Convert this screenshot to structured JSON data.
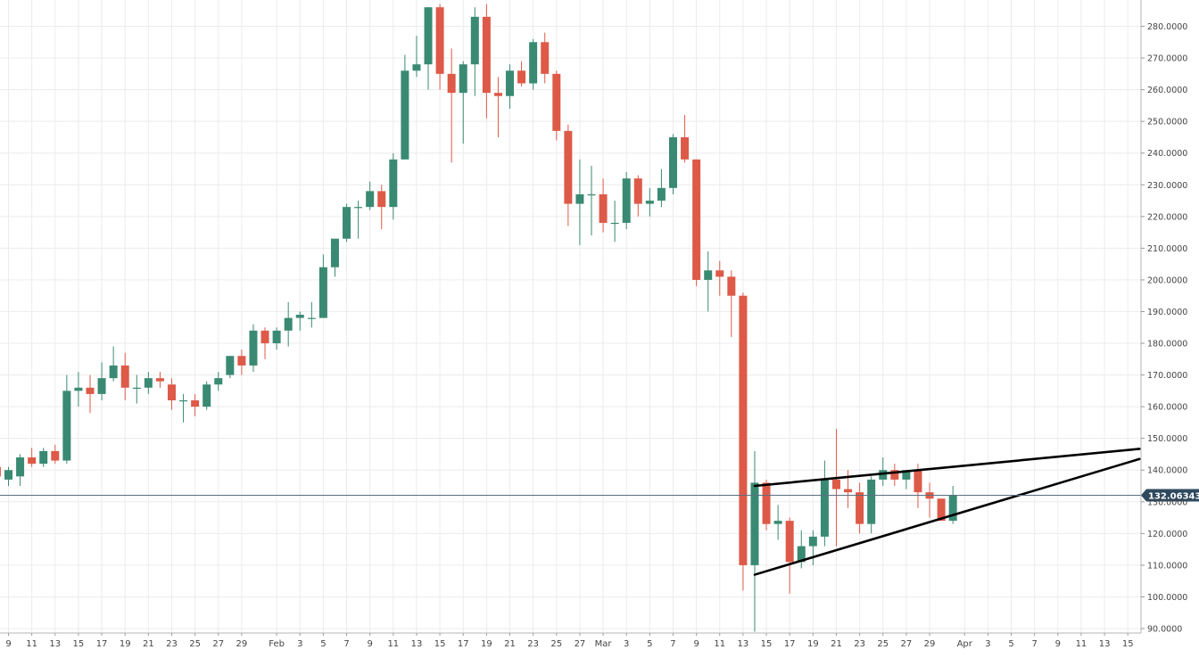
{
  "chart_data": {
    "type": "candlestick",
    "x_ticks": [
      "9",
      "11",
      "13",
      "15",
      "17",
      "19",
      "21",
      "23",
      "25",
      "27",
      "29",
      "Feb",
      "3",
      "5",
      "7",
      "9",
      "11",
      "13",
      "15",
      "17",
      "19",
      "21",
      "23",
      "25",
      "27",
      "Mar",
      "3",
      "5",
      "7",
      "9",
      "11",
      "13",
      "15",
      "17",
      "19",
      "21",
      "23",
      "25",
      "27",
      "29",
      "Apr",
      "3",
      "5",
      "7",
      "9",
      "11",
      "13",
      "15"
    ],
    "y_ticks": [
      "90.0000",
      "100.0000",
      "110.0000",
      "120.0000",
      "130.0000",
      "140.0000",
      "150.0000",
      "160.0000",
      "170.0000",
      "180.0000",
      "190.0000",
      "200.0000",
      "210.0000",
      "220.0000",
      "230.0000",
      "240.0000",
      "250.0000",
      "260.0000",
      "270.0000",
      "280.0000"
    ],
    "ylim": [
      89,
      287
    ],
    "grid": true,
    "current_price": "132.06343",
    "current_price_value": 132.06,
    "colors": {
      "up": "#3a8a73",
      "down": "#dd5a48",
      "trendline": "#000000",
      "price_line": "#5a6f80",
      "price_label_bg": "#2f4a5f"
    },
    "candles": [
      {
        "d": "Jan 8",
        "o": 141,
        "h": 143,
        "l": 136,
        "c": 138
      },
      {
        "d": "Jan 9",
        "o": 137,
        "h": 141,
        "l": 135,
        "c": 140
      },
      {
        "d": "Jan 10",
        "o": 138,
        "h": 145,
        "l": 135,
        "c": 144
      },
      {
        "d": "Jan 11",
        "o": 144,
        "h": 147,
        "l": 141,
        "c": 142
      },
      {
        "d": "Jan 12",
        "o": 142,
        "h": 147,
        "l": 141,
        "c": 146
      },
      {
        "d": "Jan 13",
        "o": 146,
        "h": 148,
        "l": 142,
        "c": 143
      },
      {
        "d": "Jan 14",
        "o": 143,
        "h": 170,
        "l": 142,
        "c": 165
      },
      {
        "d": "Jan 15",
        "o": 165,
        "h": 171,
        "l": 160,
        "c": 166
      },
      {
        "d": "Jan 16",
        "o": 166,
        "h": 170,
        "l": 158,
        "c": 164
      },
      {
        "d": "Jan 17",
        "o": 164,
        "h": 174,
        "l": 162,
        "c": 169
      },
      {
        "d": "Jan 18",
        "o": 169,
        "h": 179,
        "l": 168,
        "c": 173
      },
      {
        "d": "Jan 19",
        "o": 173,
        "h": 177,
        "l": 162,
        "c": 166
      },
      {
        "d": "Jan 20",
        "o": 166,
        "h": 170,
        "l": 161,
        "c": 166
      },
      {
        "d": "Jan 21",
        "o": 166,
        "h": 171,
        "l": 164,
        "c": 169
      },
      {
        "d": "Jan 22",
        "o": 169,
        "h": 171,
        "l": 166,
        "c": 168
      },
      {
        "d": "Jan 23",
        "o": 167,
        "h": 169,
        "l": 159,
        "c": 162
      },
      {
        "d": "Jan 24",
        "o": 162,
        "h": 164,
        "l": 155,
        "c": 162
      },
      {
        "d": "Jan 25",
        "o": 162,
        "h": 164,
        "l": 157,
        "c": 160
      },
      {
        "d": "Jan 26",
        "o": 160,
        "h": 168,
        "l": 159,
        "c": 167
      },
      {
        "d": "Jan 27",
        "o": 167,
        "h": 171,
        "l": 165,
        "c": 169
      },
      {
        "d": "Jan 28",
        "o": 170,
        "h": 176,
        "l": 169,
        "c": 176
      },
      {
        "d": "Jan 29",
        "o": 176,
        "h": 178,
        "l": 170,
        "c": 173
      },
      {
        "d": "Jan 30",
        "o": 173,
        "h": 186,
        "l": 171,
        "c": 184
      },
      {
        "d": "Jan 31",
        "o": 184,
        "h": 185,
        "l": 175,
        "c": 180
      },
      {
        "d": "Feb 1",
        "o": 180,
        "h": 185,
        "l": 178,
        "c": 184
      },
      {
        "d": "Feb 2",
        "o": 184,
        "h": 193,
        "l": 179,
        "c": 188
      },
      {
        "d": "Feb 3",
        "o": 188,
        "h": 190,
        "l": 184,
        "c": 189
      },
      {
        "d": "Feb 4",
        "o": 188,
        "h": 193,
        "l": 185,
        "c": 188
      },
      {
        "d": "Feb 5",
        "o": 188,
        "h": 208,
        "l": 188,
        "c": 204
      },
      {
        "d": "Feb 6",
        "o": 204,
        "h": 213,
        "l": 201,
        "c": 213
      },
      {
        "d": "Feb 7",
        "o": 213,
        "h": 224,
        "l": 212,
        "c": 223
      },
      {
        "d": "Feb 8",
        "o": 223,
        "h": 225,
        "l": 213,
        "c": 223
      },
      {
        "d": "Feb 9",
        "o": 223,
        "h": 231,
        "l": 222,
        "c": 228
      },
      {
        "d": "Feb 10",
        "o": 228,
        "h": 230,
        "l": 216,
        "c": 223
      },
      {
        "d": "Feb 11",
        "o": 223,
        "h": 240,
        "l": 219,
        "c": 238
      },
      {
        "d": "Feb 12",
        "o": 238,
        "h": 271,
        "l": 238,
        "c": 266
      },
      {
        "d": "Feb 13",
        "o": 266,
        "h": 277,
        "l": 264,
        "c": 268
      },
      {
        "d": "Feb 14",
        "o": 268,
        "h": 286,
        "l": 260,
        "c": 286
      },
      {
        "d": "Feb 15",
        "o": 286,
        "h": 287,
        "l": 260,
        "c": 265
      },
      {
        "d": "Feb 16",
        "o": 265,
        "h": 273,
        "l": 237,
        "c": 259
      },
      {
        "d": "Feb 17",
        "o": 259,
        "h": 269,
        "l": 243,
        "c": 268
      },
      {
        "d": "Feb 18",
        "o": 268,
        "h": 286,
        "l": 258,
        "c": 283
      },
      {
        "d": "Feb 19",
        "o": 283,
        "h": 287,
        "l": 251,
        "c": 259
      },
      {
        "d": "Feb 20",
        "o": 259,
        "h": 264,
        "l": 245,
        "c": 258
      },
      {
        "d": "Feb 21",
        "o": 258,
        "h": 268,
        "l": 254,
        "c": 266
      },
      {
        "d": "Feb 22",
        "o": 266,
        "h": 269,
        "l": 261,
        "c": 262
      },
      {
        "d": "Feb 23",
        "o": 262,
        "h": 276,
        "l": 260,
        "c": 275
      },
      {
        "d": "Feb 24",
        "o": 275,
        "h": 278,
        "l": 262,
        "c": 265
      },
      {
        "d": "Feb 25",
        "o": 265,
        "h": 266,
        "l": 244,
        "c": 247
      },
      {
        "d": "Feb 26",
        "o": 247,
        "h": 249,
        "l": 217,
        "c": 224
      },
      {
        "d": "Feb 27",
        "o": 224,
        "h": 238,
        "l": 211,
        "c": 227
      },
      {
        "d": "Feb 28",
        "o": 227,
        "h": 236,
        "l": 214,
        "c": 227
      },
      {
        "d": "Mar 1",
        "o": 227,
        "h": 232,
        "l": 215,
        "c": 218
      },
      {
        "d": "Mar 2",
        "o": 218,
        "h": 225,
        "l": 212,
        "c": 218
      },
      {
        "d": "Mar 3",
        "o": 218,
        "h": 234,
        "l": 216,
        "c": 232
      },
      {
        "d": "Mar 4",
        "o": 232,
        "h": 233,
        "l": 220,
        "c": 224
      },
      {
        "d": "Mar 5",
        "o": 224,
        "h": 229,
        "l": 220,
        "c": 225
      },
      {
        "d": "Mar 6",
        "o": 225,
        "h": 235,
        "l": 223,
        "c": 229
      },
      {
        "d": "Mar 7",
        "o": 229,
        "h": 246,
        "l": 227,
        "c": 245
      },
      {
        "d": "Mar 8",
        "o": 245,
        "h": 252,
        "l": 237,
        "c": 238
      },
      {
        "d": "Mar 9",
        "o": 238,
        "h": 238,
        "l": 198,
        "c": 200
      },
      {
        "d": "Mar 10",
        "o": 200,
        "h": 209,
        "l": 190,
        "c": 203
      },
      {
        "d": "Mar 11",
        "o": 203,
        "h": 206,
        "l": 195,
        "c": 201
      },
      {
        "d": "Mar 12",
        "o": 201,
        "h": 203,
        "l": 182,
        "c": 195
      },
      {
        "d": "Mar 13",
        "o": 195,
        "h": 196,
        "l": 102,
        "c": 110
      },
      {
        "d": "Mar 14",
        "o": 110,
        "h": 146,
        "l": 89,
        "c": 136
      },
      {
        "d": "Mar 15",
        "o": 136,
        "h": 137,
        "l": 121,
        "c": 123
      },
      {
        "d": "Mar 16",
        "o": 123,
        "h": 129,
        "l": 118,
        "c": 124
      },
      {
        "d": "Mar 17",
        "o": 124,
        "h": 125,
        "l": 101,
        "c": 111
      },
      {
        "d": "Mar 18",
        "o": 111,
        "h": 121,
        "l": 109,
        "c": 116
      },
      {
        "d": "Mar 19",
        "o": 116,
        "h": 121,
        "l": 110,
        "c": 119
      },
      {
        "d": "Mar 20",
        "o": 119,
        "h": 143,
        "l": 116,
        "c": 137
      },
      {
        "d": "Mar 21",
        "o": 137,
        "h": 153,
        "l": 116,
        "c": 134
      },
      {
        "d": "Mar 22",
        "o": 134,
        "h": 140,
        "l": 128,
        "c": 133
      },
      {
        "d": "Mar 23",
        "o": 133,
        "h": 136,
        "l": 120,
        "c": 123
      },
      {
        "d": "Mar 24",
        "o": 123,
        "h": 138,
        "l": 120,
        "c": 137
      },
      {
        "d": "Mar 25",
        "o": 137,
        "h": 144,
        "l": 135,
        "c": 140
      },
      {
        "d": "Mar 26",
        "o": 140,
        "h": 142,
        "l": 135,
        "c": 137
      },
      {
        "d": "Mar 27",
        "o": 137,
        "h": 140,
        "l": 134,
        "c": 140
      },
      {
        "d": "Mar 28",
        "o": 140,
        "h": 142,
        "l": 128,
        "c": 133
      },
      {
        "d": "Mar 29",
        "o": 133,
        "h": 136,
        "l": 125,
        "c": 131
      },
      {
        "d": "Mar 30",
        "o": 131,
        "h": 131,
        "l": 124,
        "c": 124
      },
      {
        "d": "Mar 31",
        "o": 124,
        "h": 135,
        "l": 123,
        "c": 132
      }
    ],
    "trendlines": [
      {
        "name": "upper",
        "from": {
          "d": "Mar 14",
          "v": 135
        },
        "to": {
          "d": "Apr 16",
          "v": 146.7
        }
      },
      {
        "name": "lower",
        "from": {
          "d": "Mar 14",
          "v": 107
        },
        "to": {
          "d": "Apr 16",
          "v": 143.5
        }
      }
    ]
  }
}
